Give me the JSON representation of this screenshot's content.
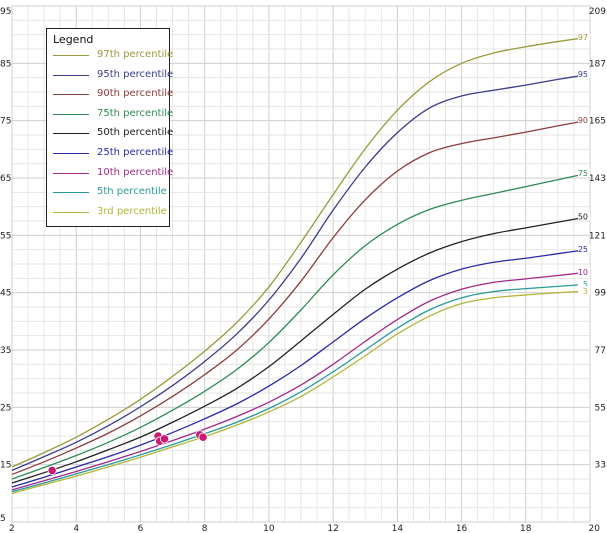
{
  "chart_data": {
    "type": "line",
    "legend": {
      "title": "Legend",
      "placement": "top-left"
    },
    "x": [
      2,
      3,
      4,
      5,
      6,
      7,
      8,
      9,
      10,
      11,
      12,
      13,
      14,
      15,
      16,
      17,
      18,
      19,
      20
    ],
    "xticks": [
      2,
      4,
      6,
      8,
      10,
      12,
      14,
      16,
      18,
      20
    ],
    "xlim": [
      2,
      20
    ],
    "ylim": [
      5,
      95
    ],
    "yticks_left": [
      5,
      15,
      25,
      35,
      45,
      55,
      65,
      75,
      85,
      95
    ],
    "yticks_right": [
      {
        "value": 15,
        "label": "33"
      },
      {
        "value": 25,
        "label": "55"
      },
      {
        "value": 35,
        "label": "77"
      },
      {
        "value": 45,
        "label": "99"
      },
      {
        "value": 55,
        "label": "121"
      },
      {
        "value": 65,
        "label": "143"
      },
      {
        "value": 75,
        "label": "165"
      },
      {
        "value": 85,
        "label": "187"
      },
      {
        "value": 95,
        "label": "209"
      }
    ],
    "grid": true,
    "series": [
      {
        "name": "97th percentile",
        "end_label": "97",
        "color": "#9a9a3a",
        "values": [
          14.6,
          17.1,
          19.8,
          22.9,
          26.4,
          30.4,
          34.8,
          39.8,
          46.0,
          53.8,
          62.1,
          70.1,
          76.8,
          81.8,
          85.0,
          86.8,
          87.9,
          88.8,
          89.6
        ]
      },
      {
        "name": "95th percentile",
        "end_label": "95",
        "color": "#3c3c8c",
        "values": [
          14.0,
          16.4,
          18.9,
          21.8,
          25.1,
          28.8,
          33.0,
          37.8,
          43.7,
          51.0,
          59.4,
          66.9,
          72.9,
          77.2,
          79.3,
          80.3,
          81.2,
          82.2,
          83.1
        ]
      },
      {
        "name": "90th percentile",
        "end_label": "90",
        "color": "#8c3c3c",
        "values": [
          13.3,
          15.5,
          17.9,
          20.5,
          23.5,
          26.9,
          30.7,
          35.0,
          40.4,
          47.0,
          54.6,
          61.2,
          66.2,
          69.4,
          71.0,
          72.0,
          73.0,
          74.1,
          75.1
        ]
      },
      {
        "name": "75th percentile",
        "end_label": "75",
        "color": "#2e8b57",
        "values": [
          12.5,
          14.5,
          16.6,
          18.9,
          21.5,
          24.5,
          27.8,
          31.6,
          36.3,
          42.0,
          48.1,
          53.2,
          56.9,
          59.5,
          61.1,
          62.3,
          63.5,
          64.7,
          65.9
        ]
      },
      {
        "name": "50th percentile",
        "end_label": "50",
        "color": "#222222",
        "values": [
          11.8,
          13.6,
          15.5,
          17.6,
          19.8,
          22.4,
          25.2,
          28.3,
          32.1,
          36.6,
          41.2,
          45.6,
          49.1,
          51.9,
          53.9,
          55.3,
          56.3,
          57.3,
          58.3
        ]
      },
      {
        "name": "25th percentile",
        "end_label": "25",
        "color": "#2a2aa6",
        "values": [
          11.1,
          12.8,
          14.6,
          16.4,
          18.4,
          20.6,
          23.0,
          25.6,
          28.7,
          32.3,
          36.4,
          40.5,
          44.1,
          47.1,
          49.1,
          50.3,
          51.0,
          51.8,
          52.6
        ]
      },
      {
        "name": "10th percentile",
        "end_label": "10",
        "color": "#a02a8c",
        "values": [
          10.6,
          12.2,
          13.8,
          15.5,
          17.3,
          19.2,
          21.2,
          23.4,
          25.9,
          28.9,
          32.5,
          36.5,
          40.3,
          43.5,
          45.6,
          46.8,
          47.4,
          48.0,
          48.6
        ]
      },
      {
        "name": "5th percentile",
        "end_label": "5",
        "color": "#2a9a9a",
        "values": [
          10.3,
          11.8,
          13.4,
          15.0,
          16.7,
          18.5,
          20.4,
          22.4,
          24.8,
          27.7,
          31.2,
          35.0,
          38.8,
          42.0,
          44.1,
          45.2,
          45.7,
          46.1,
          46.5
        ]
      },
      {
        "name": "3rd percentile",
        "end_label": "3",
        "color": "#b5b53a",
        "values": [
          10.0,
          11.5,
          13.0,
          14.6,
          16.3,
          18.1,
          19.9,
          21.9,
          24.2,
          26.9,
          30.3,
          34.0,
          37.8,
          40.9,
          43.1,
          44.1,
          44.6,
          45.0,
          45.3
        ]
      }
    ],
    "points": [
      {
        "x": 3.25,
        "y": 14.0
      },
      {
        "x": 6.55,
        "y": 20.0
      },
      {
        "x": 6.6,
        "y": 19.1
      },
      {
        "x": 6.75,
        "y": 19.5
      },
      {
        "x": 7.85,
        "y": 20.2
      },
      {
        "x": 7.95,
        "y": 19.8
      }
    ],
    "point_color": "#cc1a6e"
  }
}
